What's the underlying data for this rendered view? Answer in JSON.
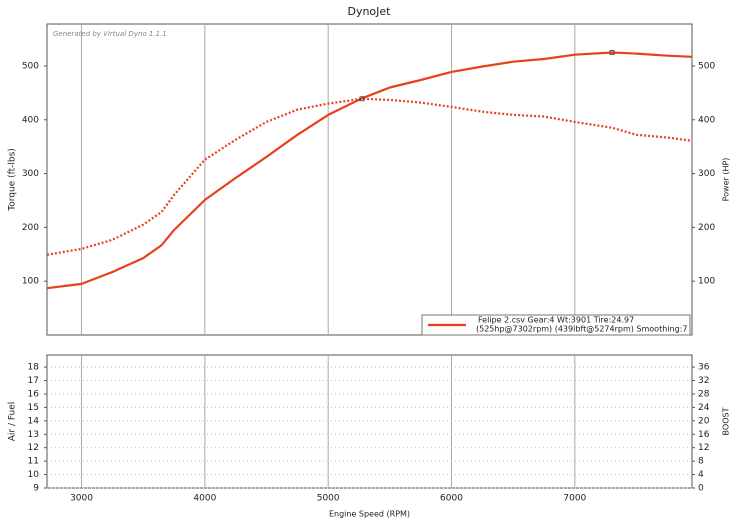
{
  "chart_data": [
    {
      "type": "line",
      "title": "DynoJet",
      "annotation": "Generated by Virtual Dyno 1.1.1",
      "x": [
        2720,
        3000,
        3250,
        3500,
        3650,
        3750,
        4000,
        4250,
        4500,
        4750,
        5000,
        5274,
        5500,
        5750,
        6000,
        6250,
        6500,
        6750,
        7000,
        7302,
        7500,
        7750,
        7950
      ],
      "series": [
        {
          "color": "#e8401c",
          "style": "solid",
          "axis": "y2",
          "values": [
            87,
            95,
            117,
            143,
            167,
            195,
            251,
            292,
            331,
            372,
            409,
            440,
            460,
            474,
            489,
            499,
            508,
            513,
            521,
            525,
            523,
            519,
            517
          ]
        },
        {
          "color": "#e8401c",
          "style": "dotted",
          "values": [
            149,
            160,
            177,
            205,
            229,
            260,
            326,
            363,
            396,
            419,
            430,
            439,
            437,
            432,
            424,
            415,
            409,
            406,
            396,
            385,
            372,
            367,
            361
          ]
        }
      ],
      "legend": [
        "Felipe 2.csv Gear:4 Wt:3901 Tire:24.97",
        "(525hp@7302rpm) (439lbft@5274rpm) Smoothing:7"
      ],
      "xlim": [
        2720,
        7950
      ],
      "xticks": [
        3000,
        4000,
        5000,
        6000,
        7000
      ],
      "ylabel": "Torque (ft-lbs)",
      "ylim": [
        0,
        578
      ],
      "yticks": [
        100,
        200,
        300,
        400,
        500
      ],
      "y2label": "Power (HP)",
      "y2lim": [
        0,
        578
      ],
      "y2ticks": [
        100,
        200,
        300,
        400,
        500
      ],
      "grid": "x"
    },
    {
      "type": "line",
      "series": [],
      "xlabel": "Engine Speed (RPM)",
      "xlim": [
        2720,
        7950
      ],
      "xticks": [
        3000,
        4000,
        5000,
        6000,
        7000
      ],
      "ylabel": "Air / Fuel",
      "ylim": [
        9,
        18.9
      ],
      "yticks": [
        9,
        10,
        11,
        12,
        13,
        14,
        15,
        16,
        17,
        18
      ],
      "y2label": "BOOST",
      "y2lim": [
        0,
        39.6
      ],
      "y2ticks": [
        0,
        4,
        8,
        12,
        16,
        20,
        24,
        28,
        32,
        36
      ],
      "grid": "xy"
    }
  ]
}
